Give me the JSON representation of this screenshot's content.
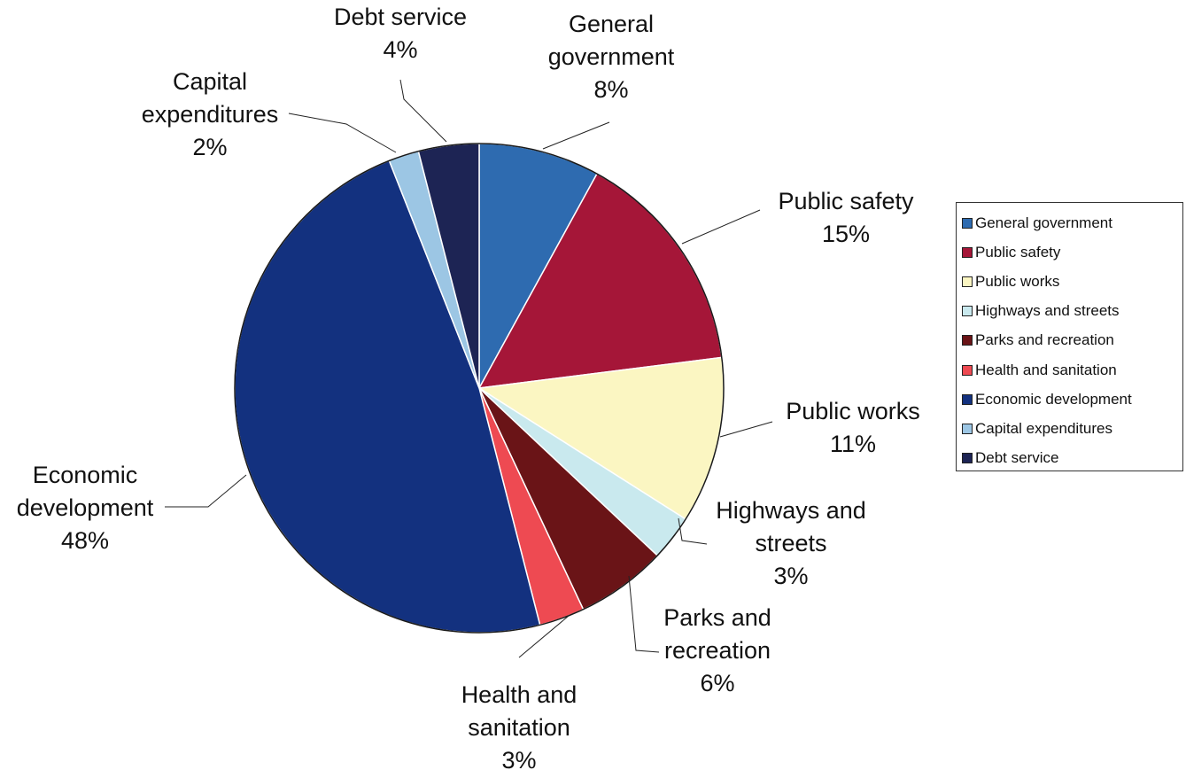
{
  "chart_data": {
    "type": "pie",
    "title": "",
    "start_angle_deg": 0,
    "direction": "clockwise",
    "slices": [
      {
        "label": "General government",
        "label_lines": [
          "General",
          "government"
        ],
        "value": 8,
        "value_label": "8%",
        "color": "#2e6bb0"
      },
      {
        "label": "Public safety",
        "label_lines": [
          "Public safety"
        ],
        "value": 15,
        "value_label": "15%",
        "color": "#a51638"
      },
      {
        "label": "Public works",
        "label_lines": [
          "Public works"
        ],
        "value": 11,
        "value_label": "11%",
        "color": "#fbf6c2"
      },
      {
        "label": "Highways and streets",
        "label_lines": [
          "Highways and",
          "streets"
        ],
        "value": 3,
        "value_label": "3%",
        "color": "#c9e9ee"
      },
      {
        "label": "Parks and recreation",
        "label_lines": [
          "Parks and",
          "recreation"
        ],
        "value": 6,
        "value_label": "6%",
        "color": "#6a1417"
      },
      {
        "label": "Health and sanitation",
        "label_lines": [
          "Health and",
          "sanitation"
        ],
        "value": 3,
        "value_label": "3%",
        "color": "#ee4a52"
      },
      {
        "label": "Economic development",
        "label_lines": [
          "Economic",
          "development"
        ],
        "value": 48,
        "value_label": "48%",
        "color": "#13317f"
      },
      {
        "label": "Capital expenditures",
        "label_lines": [
          "Capital",
          "expenditures"
        ],
        "value": 2,
        "value_label": "2%",
        "color": "#9cc6e4"
      },
      {
        "label": "Debt service",
        "label_lines": [
          "Debt service"
        ],
        "value": 4,
        "value_label": "4%",
        "color": "#1d2454"
      }
    ],
    "legend": {
      "position": "right",
      "entries": [
        "General government",
        "Public safety",
        "Public works",
        "Highways and streets",
        "Parks and recreation",
        "Health and sanitation",
        "Economic development",
        "Capital expenditures",
        "Debt service"
      ]
    }
  }
}
